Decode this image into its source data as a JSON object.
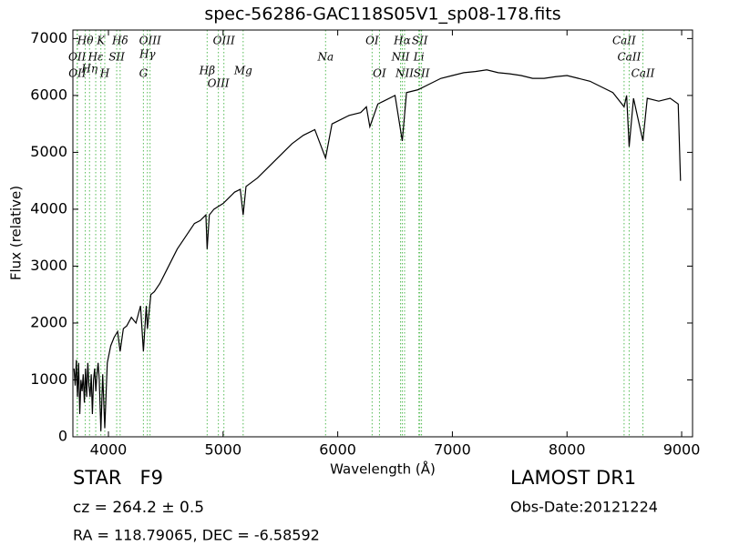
{
  "chart_data": {
    "type": "line",
    "title": "spec-56286-GAC118S05V1_sp08-178.fits",
    "x_label": "Wavelength (Å)",
    "y_label": "Flux (relative)",
    "xlim": [
      3690,
      9095
    ],
    "ylim": [
      0,
      7150
    ],
    "xticks": [
      4000,
      5000,
      6000,
      7000,
      8000,
      9000
    ],
    "yticks": [
      0,
      1000,
      2000,
      3000,
      4000,
      5000,
      6000,
      7000
    ],
    "series": [
      {
        "color": "#000000",
        "x": [
          3700,
          3710,
          3720,
          3730,
          3740,
          3750,
          3760,
          3770,
          3780,
          3790,
          3800,
          3810,
          3820,
          3830,
          3840,
          3850,
          3860,
          3870,
          3880,
          3890,
          3900,
          3910,
          3920,
          3934,
          3950,
          3968,
          3990,
          4020,
          4050,
          4080,
          4102,
          4130,
          4160,
          4200,
          4240,
          4280,
          4305,
          4330,
          4340,
          4370,
          4400,
          4450,
          4500,
          4550,
          4600,
          4650,
          4700,
          4750,
          4800,
          4850,
          4861,
          4880,
          4920,
          4960,
          5000,
          5050,
          5100,
          5150,
          5175,
          5200,
          5300,
          5400,
          5500,
          5600,
          5700,
          5800,
          5894,
          5950,
          6000,
          6100,
          6200,
          6250,
          6280,
          6350,
          6400,
          6500,
          6563,
          6600,
          6700,
          6800,
          6900,
          7000,
          7100,
          7200,
          7300,
          7400,
          7500,
          7600,
          7700,
          7800,
          7900,
          8000,
          8100,
          8200,
          8300,
          8400,
          8498,
          8520,
          8542,
          8580,
          8662,
          8700,
          8800,
          8900,
          8970,
          8990
        ],
        "values": [
          1200,
          900,
          1350,
          700,
          1300,
          400,
          1000,
          800,
          1100,
          600,
          1200,
          700,
          1300,
          900,
          700,
          1100,
          400,
          1000,
          1200,
          800,
          1100,
          1300,
          1000,
          100,
          1100,
          150,
          1300,
          1600,
          1750,
          1850,
          1500,
          1900,
          1950,
          2100,
          2000,
          2300,
          1500,
          2300,
          1900,
          2500,
          2550,
          2700,
          2900,
          3100,
          3300,
          3450,
          3600,
          3750,
          3800,
          3900,
          3300,
          3900,
          4000,
          4050,
          4100,
          4200,
          4300,
          4350,
          3900,
          4400,
          4550,
          4750,
          4950,
          5150,
          5300,
          5400,
          4900,
          5500,
          5550,
          5650,
          5700,
          5800,
          5450,
          5850,
          5900,
          6000,
          5200,
          6050,
          6100,
          6200,
          6300,
          6350,
          6400,
          6420,
          6450,
          6400,
          6380,
          6350,
          6300,
          6300,
          6330,
          6350,
          6300,
          6250,
          6150,
          6050,
          5800,
          6000,
          5100,
          5950,
          5200,
          5950,
          5900,
          5950,
          5850,
          4500
        ]
      }
    ],
    "lines": {
      "color": "#55bb55",
      "items": [
        {
          "name": "OII",
          "x": 3727
        },
        {
          "name": "OII",
          "x": 3729
        },
        {
          "name": "Hθ",
          "x": 3798
        },
        {
          "name": "Hη",
          "x": 3835
        },
        {
          "name": "Hε",
          "x": 3889
        },
        {
          "name": "K",
          "x": 3934
        },
        {
          "name": "H",
          "x": 3968
        },
        {
          "name": "SII",
          "x": 4072
        },
        {
          "name": "Hδ",
          "x": 4102
        },
        {
          "name": "G",
          "x": 4305
        },
        {
          "name": "Hγ",
          "x": 4340
        },
        {
          "name": "OIII",
          "x": 4363
        },
        {
          "name": "Hβ",
          "x": 4861
        },
        {
          "name": "OIII",
          "x": 4959
        },
        {
          "name": "OIII",
          "x": 5007
        },
        {
          "name": "Mg",
          "x": 5175
        },
        {
          "name": "Na",
          "x": 5894
        },
        {
          "name": "OI",
          "x": 6300
        },
        {
          "name": "OI",
          "x": 6364
        },
        {
          "name": "NII",
          "x": 6548
        },
        {
          "name": "Hα",
          "x": 6563
        },
        {
          "name": "NII",
          "x": 6583
        },
        {
          "name": "Li",
          "x": 6708
        },
        {
          "name": "SII",
          "x": 6716
        },
        {
          "name": "SII",
          "x": 6731
        },
        {
          "name": "CaII",
          "x": 8498
        },
        {
          "name": "CaII",
          "x": 8542
        },
        {
          "name": "CaII",
          "x": 8662
        }
      ]
    },
    "info": {
      "class": "STAR   F9",
      "cz": "cz = 264.2 ± 0.5",
      "coords": "RA = 118.79065, DEC = -6.58592",
      "survey": "LAMOST DR1",
      "date": "Obs-Date:20121224"
    }
  }
}
